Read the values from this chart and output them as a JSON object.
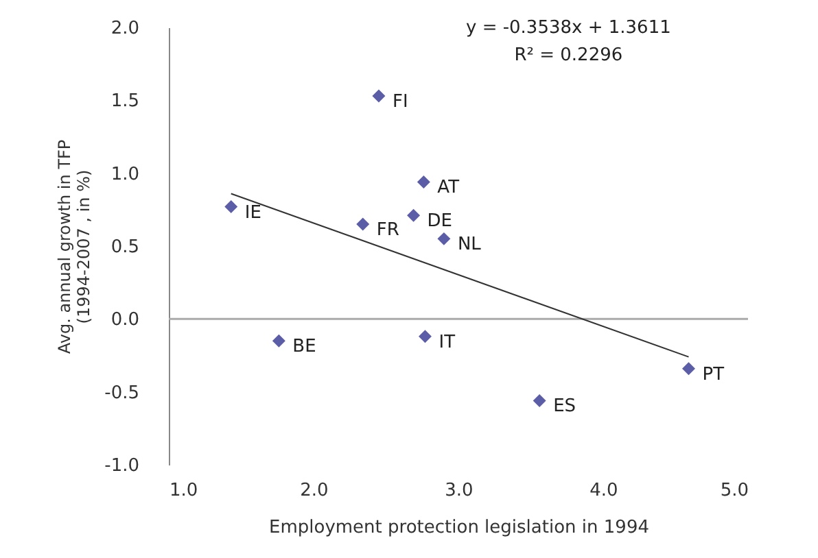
{
  "chart_data": {
    "type": "scatter",
    "xlabel": "Employment protection legislation in 1994",
    "ylabel": "Avg. annual growth in TFP\n(1994-2007 , in %)",
    "xlim": [
      1.0,
      5.0
    ],
    "xticks": [
      {
        "value": 1,
        "label": "1.0"
      },
      {
        "value": 2,
        "label": "2.0"
      },
      {
        "value": 3,
        "label": "3.0"
      },
      {
        "value": 4,
        "label": "4.0"
      },
      {
        "value": 5,
        "label": "5.0"
      }
    ],
    "ylim": [
      -1.0,
      2.0
    ],
    "yticks": [
      {
        "value": -1,
        "label": "-1.0"
      },
      {
        "value": -0.5,
        "label": "-0.5"
      },
      {
        "value": 0,
        "label": "0.0"
      },
      {
        "value": 0.5,
        "label": "0.5"
      },
      {
        "value": 1,
        "label": "1.0"
      },
      {
        "value": 1.5,
        "label": "1.5"
      },
      {
        "value": 2,
        "label": "2.0"
      }
    ],
    "grid": false,
    "series": [
      {
        "type": "scatter",
        "marker": "diamond",
        "color": "#5b5ea6",
        "x": [
          2.45,
          2.76,
          1.43,
          2.34,
          2.69,
          2.9,
          1.76,
          2.77,
          4.59,
          3.56
        ],
        "values": [
          1.53,
          0.94,
          0.77,
          0.65,
          0.71,
          0.55,
          -0.15,
          -0.12,
          -0.34,
          -0.56
        ]
      },
      {
        "type": "line",
        "color": "#333333",
        "x": [
          1.43,
          4.59
        ],
        "values": [
          0.86,
          -0.26
        ]
      }
    ],
    "ref_lines": [
      {
        "axis": "y",
        "value": 0.0,
        "color": "#aaaaaa"
      }
    ],
    "annotations": [
      {
        "text": "FI",
        "x": 2.45,
        "y": 1.53
      },
      {
        "text": "AT",
        "x": 2.76,
        "y": 0.94
      },
      {
        "text": "IE",
        "x": 1.43,
        "y": 0.77
      },
      {
        "text": "FR",
        "x": 2.34,
        "y": 0.65
      },
      {
        "text": "DE",
        "x": 2.69,
        "y": 0.71
      },
      {
        "text": "NL",
        "x": 2.9,
        "y": 0.55
      },
      {
        "text": "BE",
        "x": 1.76,
        "y": -0.15
      },
      {
        "text": "IT",
        "x": 2.77,
        "y": -0.12
      },
      {
        "text": "PT",
        "x": 4.59,
        "y": -0.34
      },
      {
        "text": "ES",
        "x": 3.56,
        "y": -0.56
      },
      "y = -0.3538x + 1.3611",
      "R² = 0.2296"
    ]
  }
}
